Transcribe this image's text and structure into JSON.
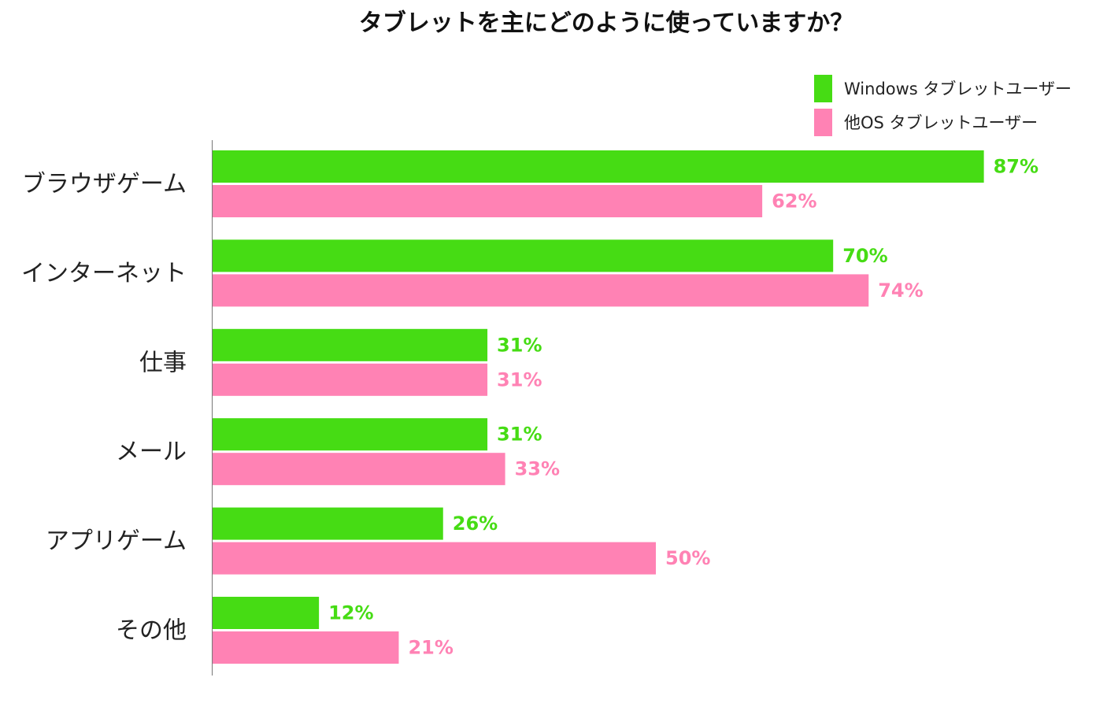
{
  "chart_data": {
    "type": "bar",
    "orientation": "horizontal",
    "title": "タブレットを主にどのように使っていますか？",
    "categories": [
      "ブラウザゲーム",
      "インターネット",
      "仕事",
      "メール",
      "アプリゲーム",
      "その他"
    ],
    "series": [
      {
        "name": "Windows タブレットユーザー",
        "color": "#46dc14",
        "values": [
          87,
          70,
          31,
          31,
          26,
          12
        ],
        "labels": [
          "87%",
          "70%",
          "31%",
          "31%",
          "26%",
          "12%"
        ]
      },
      {
        "name": "他OS タブレットユーザー",
        "color": "#ff82b4",
        "values": [
          62,
          74,
          31,
          33,
          50,
          21
        ],
        "labels": [
          "62%",
          "74%",
          "31%",
          "33%",
          "50%",
          "21%"
        ]
      }
    ],
    "value_unit": "%",
    "xlim": [
      0,
      100
    ],
    "grid": false,
    "legend_position": "top-right"
  }
}
